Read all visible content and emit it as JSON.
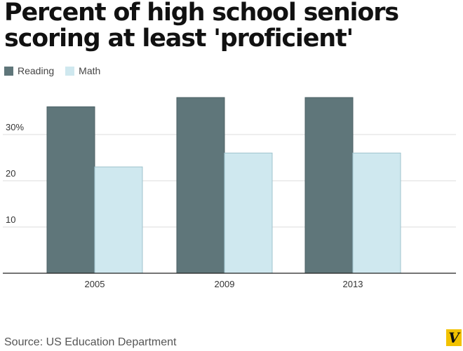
{
  "chart_data": {
    "type": "bar",
    "title_lines": [
      "Percent of high school seniors",
      "scoring at least 'proficient'"
    ],
    "categories": [
      "2005",
      "2009",
      "2013"
    ],
    "series": [
      {
        "name": "Reading",
        "color": "#5f767a",
        "values": [
          36,
          38,
          38
        ]
      },
      {
        "name": "Math",
        "color": "#cfe8ef",
        "values": [
          23,
          26,
          26
        ]
      }
    ],
    "yticks": [
      {
        "value": 10,
        "label": "10"
      },
      {
        "value": 20,
        "label": "20"
      },
      {
        "value": 30,
        "label": "30%"
      }
    ],
    "ylim": [
      0,
      40
    ],
    "grid": true,
    "legend_position": "top-left",
    "xlabel": "",
    "ylabel": ""
  },
  "source": "Source: US Education Department",
  "logo": {
    "letter": "V",
    "color": "#f2c200"
  }
}
